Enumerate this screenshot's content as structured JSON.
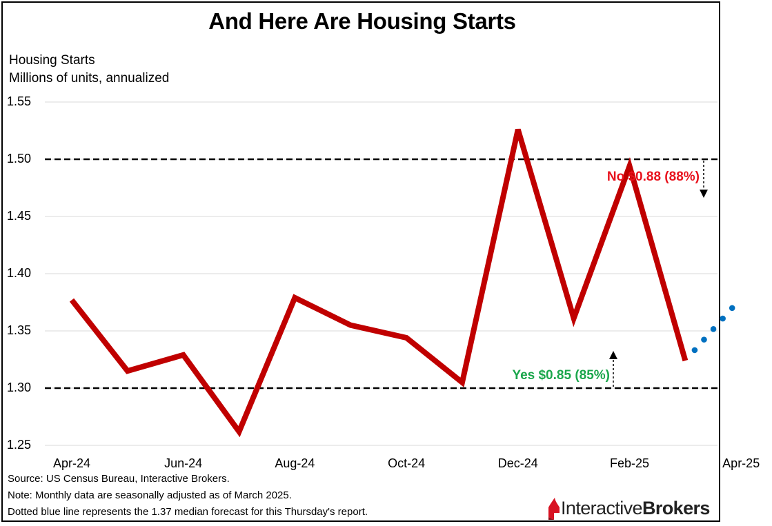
{
  "chart_data": {
    "type": "line",
    "title": "And Here Are Housing Starts",
    "ylabel_lines": [
      "Housing Starts",
      "Millions of units, annualized"
    ],
    "x": [
      "Apr-24",
      "May-24",
      "Jun-24",
      "Jul-24",
      "Aug-24",
      "Sep-24",
      "Oct-24",
      "Nov-24",
      "Dec-24",
      "Jan-25",
      "Feb-25",
      "Mar-25"
    ],
    "x_tick_labels": [
      "Apr-24",
      "Jun-24",
      "Aug-24",
      "Oct-24",
      "Dec-24",
      "Feb-25",
      "Apr-25"
    ],
    "ylim": [
      1.25,
      1.55
    ],
    "y_ticks": [
      "1.25",
      "1.30",
      "1.35",
      "1.40",
      "1.45",
      "1.50",
      "1.55"
    ],
    "grid": "horizontal",
    "series": [
      {
        "color": "#c00000",
        "style": "solid",
        "values": [
          1.377,
          1.315,
          1.329,
          1.262,
          1.379,
          1.355,
          1.344,
          1.305,
          1.526,
          1.361,
          1.494,
          1.324
        ]
      },
      {
        "color": "#0070c0",
        "style": "dotted",
        "x": [
          "Mar-25",
          "Apr-25"
        ],
        "values": [
          1.324,
          1.37
        ]
      }
    ],
    "reference_lines": [
      {
        "value": 1.5,
        "style": "dashed",
        "color": "#000000"
      },
      {
        "value": 1.3,
        "style": "dashed",
        "color": "#000000"
      }
    ],
    "annotations": [
      {
        "text": "No $0.88 (88%)",
        "color": "#e8111c"
      },
      {
        "text": "Yes $0.85 (85%)",
        "color": "#1aa64b"
      }
    ]
  },
  "footnotes": [
    "Source: US Census Bureau, Interactive Brokers.",
    "Note: Monthly data are seasonally adjusted as of March 2025.",
    "Dotted blue line represents the 1.37 median forecast for this Thursday's report."
  ],
  "logo": {
    "part1": "Interactive",
    "part2": "Brokers",
    "icon": "ib-flame-logo",
    "color": "#d81222"
  }
}
